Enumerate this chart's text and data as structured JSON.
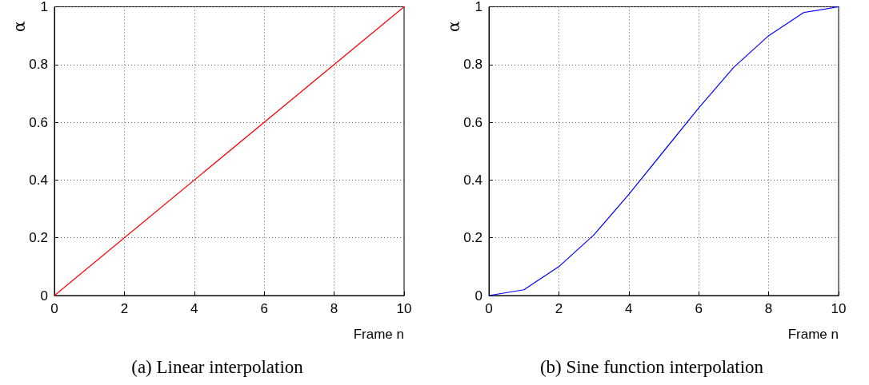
{
  "chart_data": [
    {
      "type": "line",
      "title": "(a) Linear interpolation",
      "xlabel": "Frame n",
      "ylabel": "α",
      "x": [
        0,
        10
      ],
      "series": [
        {
          "color": "#ff0000",
          "values": [
            0,
            1
          ]
        }
      ],
      "xlim": [
        0,
        10
      ],
      "xticks": [
        0,
        2,
        4,
        6,
        8,
        10
      ],
      "ylim": [
        0,
        1
      ],
      "yticks": [
        0,
        0.2,
        0.4,
        0.6,
        0.8,
        1
      ],
      "grid": true,
      "marker": "none",
      "line_style": "solid"
    },
    {
      "type": "line",
      "title": "(b) Sine function interpolation",
      "xlabel": "Frame n",
      "ylabel": "α",
      "x": [
        0,
        1,
        2,
        3,
        4,
        5,
        6,
        7,
        8,
        9,
        10
      ],
      "series": [
        {
          "color": "#0000ff",
          "values": [
            0,
            0.02,
            0.1,
            0.21,
            0.35,
            0.5,
            0.65,
            0.79,
            0.9,
            0.98,
            1
          ]
        }
      ],
      "xlim": [
        0,
        10
      ],
      "xticks": [
        0,
        2,
        4,
        6,
        8,
        10
      ],
      "ylim": [
        0,
        1
      ],
      "yticks": [
        0,
        0.2,
        0.4,
        0.6,
        0.8,
        1
      ],
      "grid": true,
      "marker": "none",
      "line_style": "solid"
    }
  ]
}
